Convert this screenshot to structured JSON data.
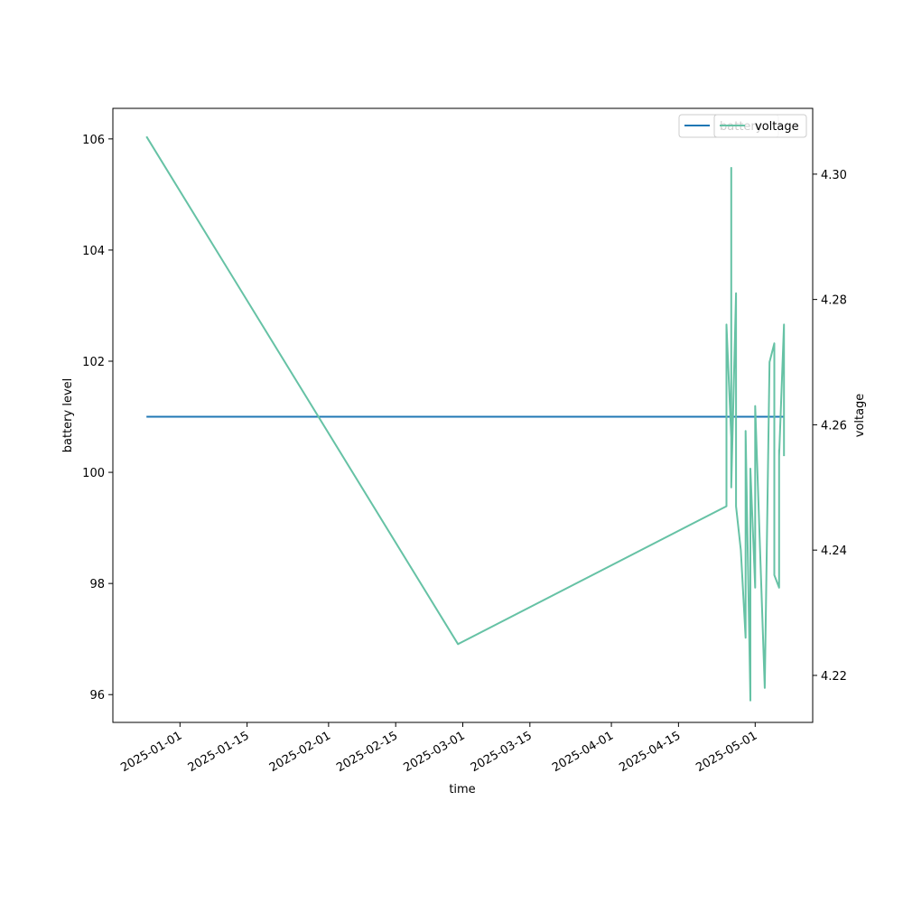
{
  "chart_data": {
    "type": "line",
    "title": "",
    "xlabel": "time",
    "ylabel": "battery level",
    "y2label": "voltage",
    "x_tick_labels": [
      "2025-01-01",
      "2025-01-15",
      "2025-02-01",
      "2025-02-15",
      "2025-03-01",
      "2025-03-15",
      "2025-04-01",
      "2025-04-15",
      "2025-05-01"
    ],
    "y_ticks": [
      96,
      98,
      100,
      102,
      104,
      106
    ],
    "y2_ticks": [
      "4.22",
      "4.24",
      "4.26",
      "4.28",
      "4.30"
    ],
    "xlim": [
      "2024-12-18",
      "2025-05-13"
    ],
    "ylim": [
      95.5,
      106.55
    ],
    "y2lim": [
      4.2125,
      4.3105
    ],
    "legend": {
      "placement": "top-right",
      "entries": [
        "battery",
        "voltage"
      ]
    },
    "grid": false,
    "series": [
      {
        "name": "battery",
        "axis": "left",
        "color": "#1f77b4",
        "points": [
          [
            "2024-12-25",
            101.0
          ],
          [
            "2025-05-07",
            101.0
          ]
        ]
      },
      {
        "name": "voltage",
        "axis": "right",
        "color": "#66c2a5",
        "points": [
          [
            "2024-12-25",
            4.306
          ],
          [
            "2025-02-28",
            4.225
          ],
          [
            "2025-04-25",
            4.247
          ],
          [
            "2025-04-25",
            4.274
          ],
          [
            "2025-04-25",
            4.264
          ],
          [
            "2025-04-25",
            4.276
          ],
          [
            "2025-04-26",
            4.258
          ],
          [
            "2025-04-26",
            4.301
          ],
          [
            "2025-04-26",
            4.25
          ],
          [
            "2025-04-27",
            4.281
          ],
          [
            "2025-04-27",
            4.247
          ],
          [
            "2025-04-28",
            4.24
          ],
          [
            "2025-04-29",
            4.226
          ],
          [
            "2025-04-29",
            4.259
          ],
          [
            "2025-04-30",
            4.216
          ],
          [
            "2025-04-30",
            4.253
          ],
          [
            "2025-05-01",
            4.234
          ],
          [
            "2025-05-01",
            4.263
          ],
          [
            "2025-05-03",
            4.218
          ],
          [
            "2025-05-04",
            4.27
          ],
          [
            "2025-05-05",
            4.273
          ],
          [
            "2025-05-05",
            4.236
          ],
          [
            "2025-05-06",
            4.234
          ],
          [
            "2025-05-06",
            4.256
          ],
          [
            "2025-05-06",
            4.255
          ],
          [
            "2025-05-07",
            4.276
          ],
          [
            "2025-05-07",
            4.268
          ],
          [
            "2025-05-07",
            4.255
          ]
        ]
      }
    ]
  }
}
